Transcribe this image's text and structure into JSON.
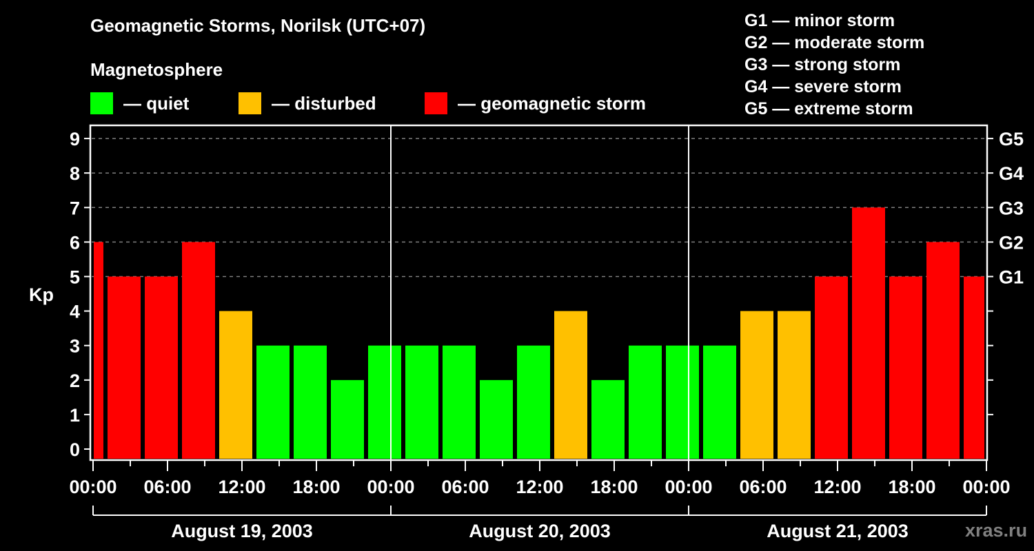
{
  "header": {
    "title": "Geomagnetic Storms, Norilsk (UTC+07)",
    "subtitle": "Magnetosphere"
  },
  "legend": {
    "items": [
      {
        "label": "— quiet",
        "color": "#00ff00"
      },
      {
        "label": "— disturbed",
        "color": "#ffc000"
      },
      {
        "label": "— geomagnetic storm",
        "color": "#ff0000"
      }
    ]
  },
  "g_legend": {
    "items": [
      "G1 — minor storm",
      "G2 — moderate storm",
      "G3 — strong storm",
      "G4 — severe storm",
      "G5 — extreme storm"
    ]
  },
  "watermark": "xras.ru",
  "chart_data": {
    "type": "bar",
    "title": "Geomagnetic Storms, Norilsk (UTC+07)",
    "subtitle": "Magnetosphere",
    "xlabel": "",
    "ylabel": "Kp",
    "ylim": [
      0,
      9
    ],
    "yticks": [
      0,
      1,
      2,
      3,
      4,
      5,
      6,
      7,
      8,
      9
    ],
    "right_axis_labels": [
      {
        "kp": 5,
        "label": "G1"
      },
      {
        "kp": 6,
        "label": "G2"
      },
      {
        "kp": 7,
        "label": "G3"
      },
      {
        "kp": 8,
        "label": "G4"
      },
      {
        "kp": 9,
        "label": "G5"
      }
    ],
    "grid": "dashed horizontal lines at Kp 5-9",
    "xtick_labels": [
      "00:00",
      "06:00",
      "12:00",
      "18:00",
      "00:00",
      "06:00",
      "12:00",
      "18:00",
      "00:00",
      "06:00",
      "12:00",
      "18:00",
      "00:00"
    ],
    "days": [
      "August 19, 2003",
      "August 20, 2003",
      "August 21, 2003"
    ],
    "colors": {
      "quiet": "#00ff00",
      "disturbed": "#ffc000",
      "storm": "#ff0000"
    },
    "bar_interval_hours": 3,
    "bars": [
      {
        "start_local": "Aug 19 00:00 (partial)",
        "kp": 6,
        "level": "storm"
      },
      {
        "start_local": "Aug 19 01:00",
        "kp": 5,
        "level": "storm"
      },
      {
        "start_local": "Aug 19 04:00",
        "kp": 5,
        "level": "storm"
      },
      {
        "start_local": "Aug 19 07:00",
        "kp": 6,
        "level": "storm"
      },
      {
        "start_local": "Aug 19 10:00",
        "kp": 4,
        "level": "disturbed"
      },
      {
        "start_local": "Aug 19 13:00",
        "kp": 3,
        "level": "quiet"
      },
      {
        "start_local": "Aug 19 16:00",
        "kp": 3,
        "level": "quiet"
      },
      {
        "start_local": "Aug 19 19:00",
        "kp": 2,
        "level": "quiet"
      },
      {
        "start_local": "Aug 19 22:00",
        "kp": 3,
        "level": "quiet"
      },
      {
        "start_local": "Aug 20 01:00",
        "kp": 3,
        "level": "quiet"
      },
      {
        "start_local": "Aug 20 04:00",
        "kp": 3,
        "level": "quiet"
      },
      {
        "start_local": "Aug 20 07:00",
        "kp": 2,
        "level": "quiet"
      },
      {
        "start_local": "Aug 20 10:00",
        "kp": 3,
        "level": "quiet"
      },
      {
        "start_local": "Aug 20 13:00",
        "kp": 4,
        "level": "disturbed"
      },
      {
        "start_local": "Aug 20 16:00",
        "kp": 2,
        "level": "quiet"
      },
      {
        "start_local": "Aug 20 19:00",
        "kp": 3,
        "level": "quiet"
      },
      {
        "start_local": "Aug 20 22:00",
        "kp": 3,
        "level": "quiet"
      },
      {
        "start_local": "Aug 21 01:00",
        "kp": 3,
        "level": "quiet"
      },
      {
        "start_local": "Aug 21 04:00",
        "kp": 4,
        "level": "disturbed"
      },
      {
        "start_local": "Aug 21 07:00",
        "kp": 4,
        "level": "disturbed"
      },
      {
        "start_local": "Aug 21 10:00",
        "kp": 5,
        "level": "storm"
      },
      {
        "start_local": "Aug 21 13:00",
        "kp": 7,
        "level": "storm"
      },
      {
        "start_local": "Aug 21 16:00",
        "kp": 5,
        "level": "storm"
      },
      {
        "start_local": "Aug 21 19:00",
        "kp": 6,
        "level": "storm"
      },
      {
        "start_local": "Aug 21 22:00 (partial)",
        "kp": 5,
        "level": "storm"
      }
    ],
    "values": [
      6,
      5,
      5,
      6,
      4,
      3,
      3,
      2,
      3,
      3,
      3,
      2,
      3,
      4,
      2,
      3,
      3,
      3,
      4,
      4,
      5,
      7,
      5,
      6,
      5
    ]
  }
}
